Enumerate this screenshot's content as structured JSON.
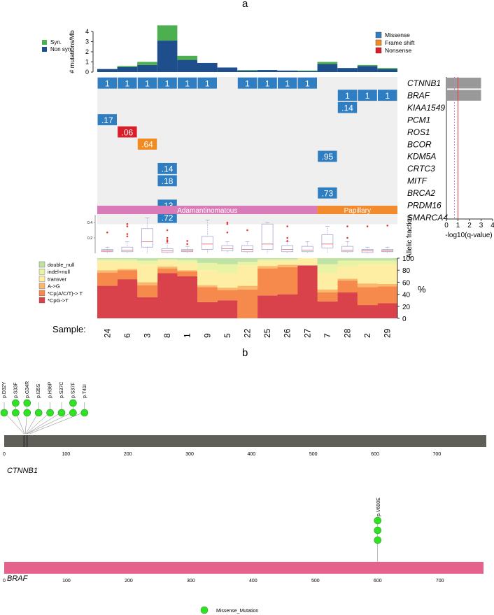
{
  "panel_a": {
    "label": "a"
  },
  "panel_b": {
    "label": "b"
  },
  "chart_data": [
    {
      "type": "bar",
      "ylabel": "# mutations/Mb",
      "ylim": [
        0,
        4
      ],
      "yticks": [
        "0",
        "1",
        "2",
        "3",
        "4"
      ],
      "categories": [
        "24",
        "6",
        "3",
        "8",
        "1",
        "9",
        "5",
        "22",
        "25",
        "26",
        "27",
        "7",
        "28",
        "2",
        "29"
      ],
      "series": [
        {
          "name": "Non syn.",
          "color": "#1f4e8c",
          "values": [
            0.3,
            0.5,
            0.7,
            3.1,
            1.2,
            0.9,
            0.45,
            0.15,
            0.2,
            0.15,
            0.1,
            0.8,
            0.4,
            0.6,
            0.3
          ]
        },
        {
          "name": "Syn.",
          "color": "#4caf50",
          "values": [
            0,
            0.1,
            0.3,
            1.5,
            0.4,
            0,
            0,
            0.05,
            0,
            0,
            0.05,
            0.2,
            0,
            0.1,
            0.1
          ]
        }
      ],
      "legend": {
        "position": "top-left"
      }
    },
    {
      "type": "table",
      "samples": [
        "24",
        "6",
        "3",
        "8",
        "1",
        "9",
        "5",
        "22",
        "25",
        "26",
        "27",
        "7",
        "28",
        "2",
        "29"
      ],
      "genes": [
        "CTNNB1",
        "BRAF",
        "KIAA1549",
        "PCM1",
        "ROS1",
        "BCOR",
        "KDM5A",
        "CRTC3",
        "MITF",
        "BRCA2",
        "PRDM16",
        "SMARCA4"
      ],
      "legend": {
        "position": "top-right",
        "items": [
          {
            "label": "Missense",
            "color": "#2f7ec1"
          },
          {
            "label": "Frame shift",
            "color": "#f18a21"
          },
          {
            "label": "Nonsense",
            "color": "#d91e2a"
          }
        ]
      },
      "cells": [
        {
          "gene": "CTNNB1",
          "samples": [
            "24",
            "6",
            "3",
            "8",
            "1",
            "9",
            "22",
            "25",
            "26",
            "27"
          ],
          "text": "1",
          "type": "Missense"
        },
        {
          "gene": "BRAF",
          "samples": [
            "28",
            "2",
            "29"
          ],
          "text": "1",
          "type": "Missense"
        },
        {
          "gene": "KIAA1549",
          "samples": [
            "28"
          ],
          "text": ".14",
          "type": "Missense"
        },
        {
          "gene": "PCM1",
          "samples": [
            "24"
          ],
          "text": ".17",
          "type": "Missense"
        },
        {
          "gene": "ROS1",
          "samples": [
            "6"
          ],
          "text": ".06",
          "type": "Nonsense"
        },
        {
          "gene": "BCOR",
          "samples": [
            "3"
          ],
          "text": ".64",
          "type": "Frame shift"
        },
        {
          "gene": "KDM5A",
          "samples": [
            "7"
          ],
          "text": ".95",
          "type": "Missense"
        },
        {
          "gene": "CRTC3",
          "samples": [
            "8"
          ],
          "text": ".14",
          "type": "Missense"
        },
        {
          "gene": "MITF",
          "samples": [
            "8"
          ],
          "text": ".18",
          "type": "Missense"
        },
        {
          "gene": "BRCA2",
          "samples": [
            "7"
          ],
          "text": ".73",
          "type": "Missense"
        },
        {
          "gene": "PRDM16",
          "samples": [
            "8"
          ],
          "text": ".13",
          "type": "Missense"
        },
        {
          "gene": "SMARCA4",
          "samples": [
            "8"
          ],
          "text": ".72",
          "type": "Missense"
        }
      ],
      "subtypes": [
        {
          "label": "Adamantinomatous",
          "samples": 11,
          "color": "#d97bb8"
        },
        {
          "label": "Papillary",
          "samples": 4,
          "color": "#f28a2e"
        }
      ]
    },
    {
      "type": "bar",
      "xlabel": "-log10(q-value)",
      "xticks": [
        "0",
        "1",
        "2",
        "3",
        "4"
      ],
      "xlim": [
        0,
        4
      ],
      "bars": [
        {
          "gene": "CTNNB1",
          "value": 3
        },
        {
          "gene": "BRAF",
          "value": 3
        }
      ],
      "threshold_lines": [
        0.7,
        1.0
      ]
    },
    {
      "type": "scatter",
      "ylabel": "Allelic fraction",
      "yticks": [
        "0.2",
        "0.4"
      ],
      "ylim": [
        0,
        0.5
      ],
      "boxes": [
        {
          "sample": "24",
          "q1": 0.02,
          "median": 0.03,
          "q3": 0.05,
          "min": 0.0,
          "max": 0.08,
          "outliers": [
            0.27
          ]
        },
        {
          "sample": "6",
          "q1": 0.02,
          "median": 0.04,
          "q3": 0.08,
          "min": 0.0,
          "max": 0.15,
          "outliers": [
            0.35,
            0.38,
            0.25,
            0.22
          ]
        },
        {
          "sample": "3",
          "q1": 0.08,
          "median": 0.15,
          "q3": 0.32,
          "min": 0.0,
          "max": 0.46,
          "outliers": []
        },
        {
          "sample": "8",
          "q1": 0.01,
          "median": 0.03,
          "q3": 0.06,
          "min": 0.0,
          "max": 0.13,
          "outliers": [
            0.3,
            0.2,
            0.17,
            0.15
          ]
        },
        {
          "sample": "1",
          "q1": 0.02,
          "median": 0.03,
          "q3": 0.05,
          "min": 0.0,
          "max": 0.09,
          "outliers": [
            0.16,
            0.12
          ]
        },
        {
          "sample": "9",
          "q1": 0.05,
          "median": 0.12,
          "q3": 0.22,
          "min": 0.0,
          "max": 0.43,
          "outliers": []
        },
        {
          "sample": "5",
          "q1": 0.03,
          "median": 0.06,
          "q3": 0.1,
          "min": 0.0,
          "max": 0.15,
          "outliers": [
            0.4,
            0.38,
            0.27
          ]
        },
        {
          "sample": "22",
          "q1": 0.02,
          "median": 0.05,
          "q3": 0.1,
          "min": 0.0,
          "max": 0.15,
          "outliers": [
            0.3
          ]
        },
        {
          "sample": "25",
          "q1": 0.05,
          "median": 0.12,
          "q3": 0.38,
          "min": 0.0,
          "max": 0.4,
          "outliers": []
        },
        {
          "sample": "26",
          "q1": 0.02,
          "median": 0.05,
          "q3": 0.1,
          "min": 0.0,
          "max": 0.15,
          "outliers": [
            0.35,
            0.2,
            0.16
          ]
        },
        {
          "sample": "27",
          "q1": 0.02,
          "median": 0.04,
          "q3": 0.09,
          "min": 0.0,
          "max": 0.15,
          "outliers": []
        },
        {
          "sample": "7",
          "q1": 0.07,
          "median": 0.12,
          "q3": 0.24,
          "min": 0.0,
          "max": 0.35,
          "outliers": []
        },
        {
          "sample": "28",
          "q1": 0.02,
          "median": 0.04,
          "q3": 0.09,
          "min": 0.0,
          "max": 0.15,
          "outliers": [
            0.35,
            0.2
          ]
        },
        {
          "sample": "2",
          "q1": 0.01,
          "median": 0.03,
          "q3": 0.05,
          "min": 0.0,
          "max": 0.08,
          "outliers": [
            0.35
          ]
        },
        {
          "sample": "29",
          "q1": 0.02,
          "median": 0.03,
          "q3": 0.05,
          "min": 0.0,
          "max": 0.08,
          "outliers": [
            0.36
          ]
        }
      ]
    },
    {
      "type": "area",
      "xlabel": "Sample:",
      "ylabel": "%",
      "ylim": [
        0,
        100
      ],
      "yticks": [
        "0",
        "20",
        "40",
        "60",
        "80",
        "100"
      ],
      "categories": [
        "24",
        "6",
        "3",
        "8",
        "1",
        "9",
        "5",
        "22",
        "25",
        "26",
        "27",
        "7",
        "28",
        "2",
        "29"
      ],
      "series": [
        {
          "name": "*CpG->T",
          "color": "#d9424b",
          "values": [
            54,
            65,
            35,
            75,
            70,
            27,
            30,
            0,
            38,
            40,
            88,
            28,
            43,
            22,
            25
          ]
        },
        {
          "name": "*Cp(A/C/T)-> T",
          "color": "#f58a4c",
          "values": [
            22,
            15,
            20,
            8,
            8,
            25,
            17,
            48,
            45,
            45,
            0,
            15,
            20,
            30,
            28
          ]
        },
        {
          "name": "A->G",
          "color": "#fbb86a",
          "values": [
            4,
            2,
            5,
            3,
            2,
            3,
            4,
            6,
            4,
            4,
            0,
            5,
            3,
            6,
            4
          ]
        },
        {
          "name": "transver",
          "color": "#feeea4",
          "values": [
            15,
            12,
            30,
            10,
            12,
            25,
            24,
            34,
            8,
            6,
            12,
            27,
            20,
            32,
            33
          ]
        },
        {
          "name": "indel+null",
          "color": "#e9f3a6",
          "values": [
            3,
            4,
            6,
            2,
            5,
            12,
            15,
            6,
            3,
            3,
            0,
            15,
            10,
            6,
            6
          ]
        },
        {
          "name": "double_null",
          "color": "#bfe3a5",
          "values": [
            2,
            2,
            4,
            2,
            3,
            8,
            10,
            6,
            2,
            2,
            0,
            10,
            4,
            4,
            4
          ]
        }
      ],
      "legend": {
        "position": "left"
      }
    },
    {
      "type": "scatter",
      "gene": "CTNNB1",
      "xlim": [
        0,
        780
      ],
      "xticks": [
        "0",
        "100",
        "200",
        "300",
        "400",
        "500",
        "600",
        "700"
      ],
      "mutations": [
        {
          "label": "p.D32Y",
          "position": 32,
          "count": 1
        },
        {
          "label": "p.S33F",
          "position": 33,
          "count": 2
        },
        {
          "label": "p.G34R",
          "position": 34,
          "count": 2
        },
        {
          "label": "p.I35S",
          "position": 35,
          "count": 1
        },
        {
          "label": "p.H36P",
          "position": 36,
          "count": 1
        },
        {
          "label": "p.S37C",
          "position": 37,
          "count": 1
        },
        {
          "label": "p.S37F",
          "position": 37,
          "count": 2
        },
        {
          "label": "p.T41I",
          "position": 41,
          "count": 1
        }
      ],
      "domain_marks": [
        32,
        37
      ]
    },
    {
      "type": "scatter",
      "gene": "BRAF",
      "xlim": [
        0,
        770
      ],
      "xticks": [
        "0",
        "100",
        "200",
        "300",
        "400",
        "500",
        "600",
        "700"
      ],
      "mutations": [
        {
          "label": "p.V600E",
          "position": 600,
          "count": 3
        }
      ],
      "legend": {
        "position": "bottom",
        "items": [
          {
            "label": "Missense_Mutation",
            "color": "#32e025"
          }
        ]
      }
    }
  ]
}
